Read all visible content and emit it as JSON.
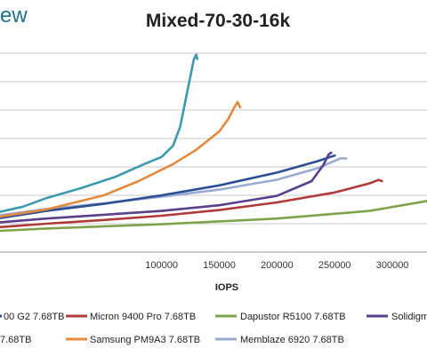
{
  "brand": "ew",
  "chart_data": {
    "type": "line",
    "title": "Mixed-70-30-16k",
    "xlabel": "IOPS",
    "ylabel": "",
    "xlim": [
      -40000,
      330000
    ],
    "ylim": [
      0,
      7
    ],
    "xticks": [
      100000,
      150000,
      200000,
      250000,
      300000
    ],
    "xtick_labels": [
      "100000",
      "150000",
      "200000",
      "250000",
      "300000"
    ],
    "grid": true,
    "legend": "bottom",
    "series": [
      {
        "name": "00 G2 7.68TB",
        "color": "#2c4f93",
        "points": [
          [
            -40000,
            1.2
          ],
          [
            0,
            1.45
          ],
          [
            50000,
            1.7
          ],
          [
            100000,
            2.0
          ],
          [
            150000,
            2.35
          ],
          [
            200000,
            2.8
          ],
          [
            235000,
            3.2
          ],
          [
            250000,
            3.4
          ]
        ]
      },
      {
        "name": "Micron 9400 Pro 7.68TB",
        "color": "#b03a3a",
        "points": [
          [
            -40000,
            0.88
          ],
          [
            0,
            1.0
          ],
          [
            50000,
            1.13
          ],
          [
            100000,
            1.28
          ],
          [
            150000,
            1.48
          ],
          [
            200000,
            1.75
          ],
          [
            250000,
            2.1
          ],
          [
            280000,
            2.42
          ],
          [
            288000,
            2.54
          ],
          [
            291000,
            2.5
          ]
        ]
      },
      {
        "name": "Dapustor R5100 7.68TB",
        "color": "#7ea34a",
        "points": [
          [
            -40000,
            0.75
          ],
          [
            0,
            0.83
          ],
          [
            100000,
            0.98
          ],
          [
            200000,
            1.18
          ],
          [
            280000,
            1.45
          ],
          [
            330000,
            1.8
          ]
        ]
      },
      {
        "name": "Solidigm",
        "color": "#5b3f8c",
        "points": [
          [
            -40000,
            1.05
          ],
          [
            0,
            1.18
          ],
          [
            100000,
            1.45
          ],
          [
            150000,
            1.65
          ],
          [
            200000,
            1.98
          ],
          [
            230000,
            2.5
          ],
          [
            240000,
            3.05
          ],
          [
            245000,
            3.45
          ],
          [
            247000,
            3.5
          ]
        ]
      },
      {
        "name": "7.68TB",
        "color": "#3b9ab0",
        "points": [
          [
            -40000,
            1.42
          ],
          [
            -20000,
            1.6
          ],
          [
            0,
            1.9
          ],
          [
            30000,
            2.25
          ],
          [
            60000,
            2.65
          ],
          [
            85000,
            3.1
          ],
          [
            100000,
            3.35
          ],
          [
            110000,
            3.75
          ],
          [
            116000,
            4.4
          ],
          [
            121000,
            5.4
          ],
          [
            125000,
            6.2
          ],
          [
            128000,
            6.78
          ],
          [
            130000,
            6.95
          ],
          [
            131000,
            6.8
          ]
        ]
      },
      {
        "name": "Samsung PM9A3 7.68TB",
        "color": "#e58a3d",
        "points": [
          [
            -40000,
            1.25
          ],
          [
            0,
            1.5
          ],
          [
            50000,
            2.0
          ],
          [
            80000,
            2.5
          ],
          [
            110000,
            3.1
          ],
          [
            130000,
            3.6
          ],
          [
            150000,
            4.25
          ],
          [
            158000,
            4.7
          ],
          [
            163000,
            5.1
          ],
          [
            166000,
            5.28
          ],
          [
            168000,
            5.1
          ]
        ]
      },
      {
        "name": "Memblaze 6920 7.68TB",
        "color": "#9aaad2",
        "points": [
          [
            -40000,
            1.3
          ],
          [
            0,
            1.52
          ],
          [
            50000,
            1.72
          ],
          [
            100000,
            1.95
          ],
          [
            150000,
            2.2
          ],
          [
            200000,
            2.55
          ],
          [
            235000,
            2.95
          ],
          [
            255000,
            3.3
          ],
          [
            260000,
            3.3
          ]
        ]
      }
    ]
  }
}
